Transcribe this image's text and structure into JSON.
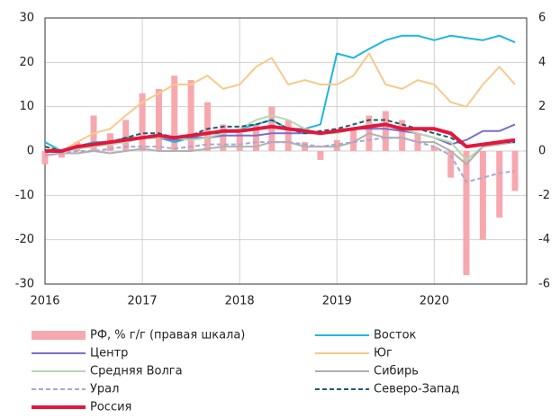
{
  "chart_data": {
    "type": "line",
    "x": [
      2016.0,
      2016.17,
      2016.33,
      2016.5,
      2016.67,
      2016.83,
      2017.0,
      2017.17,
      2017.33,
      2017.5,
      2017.67,
      2017.83,
      2018.0,
      2018.17,
      2018.33,
      2018.5,
      2018.67,
      2018.83,
      2019.0,
      2019.17,
      2019.33,
      2019.5,
      2019.67,
      2019.83,
      2020.0,
      2020.17,
      2020.33,
      2020.5,
      2020.67,
      2020.83
    ],
    "xlim": [
      2016,
      2020.95
    ],
    "xticks": [
      2016,
      2017,
      2018,
      2019,
      2020
    ],
    "ylim": [
      -30,
      30
    ],
    "yticks": [
      -30,
      -20,
      -10,
      0,
      10,
      20,
      30
    ],
    "y2lim": [
      -6,
      6
    ],
    "y2ticks": [
      -6,
      -4,
      -2,
      0,
      2,
      4,
      6
    ],
    "grid": true,
    "series": [
      {
        "name": "РФ, % г/г (правая шкала)",
        "type": "bar",
        "axis": "y2",
        "color": "#f7a8ae",
        "values": [
          -0.6,
          -0.3,
          0.4,
          1.6,
          0.8,
          1.4,
          2.6,
          2.8,
          3.4,
          3.2,
          2.2,
          1.2,
          0.8,
          1.2,
          2.0,
          1.4,
          0.4,
          -0.4,
          0.5,
          1.0,
          1.6,
          1.8,
          1.4,
          0.8,
          0.2,
          -1.2,
          -5.6,
          -4.0,
          -3.0,
          -1.8
        ]
      },
      {
        "name": "Восток",
        "color": "#1fb6e0",
        "style": "solid",
        "values": [
          2,
          0,
          1,
          2,
          2,
          3,
          3,
          3,
          2,
          3,
          4,
          4,
          5,
          6,
          7,
          5,
          5,
          6,
          22,
          21,
          23,
          25,
          26,
          26,
          25,
          26,
          25.5,
          25,
          26,
          24.5
        ]
      },
      {
        "name": "Центр",
        "color": "#7b6fc9",
        "style": "solid",
        "values": [
          0,
          0,
          1,
          1.5,
          2,
          2,
          3,
          3,
          2.5,
          3,
          3,
          3.5,
          3.5,
          3.5,
          4,
          4,
          4,
          4,
          4.5,
          5,
          5,
          5,
          4.5,
          4,
          3,
          1.5,
          2.5,
          4.5,
          4.5,
          6
        ]
      },
      {
        "name": "Юг",
        "color": "#f8c98a",
        "style": "solid",
        "values": [
          1,
          0,
          2,
          4,
          5,
          8,
          11,
          13,
          15,
          15,
          17,
          14,
          15,
          19,
          21,
          15,
          16,
          15,
          15,
          17,
          22,
          15,
          14,
          16,
          15,
          11,
          10,
          15,
          19,
          15
        ]
      },
      {
        "name": "Средняя Волга",
        "color": "#b5d9ae",
        "style": "solid",
        "values": [
          0,
          0,
          0.5,
          1,
          1.5,
          2,
          3,
          3,
          3,
          2.5,
          3,
          4,
          5,
          7,
          8,
          7,
          5,
          4,
          4,
          5,
          6,
          6,
          5,
          4,
          3,
          2,
          -2,
          1,
          2,
          2.5
        ]
      },
      {
        "name": "Сибирь",
        "color": "#b0b0b0",
        "style": "solid",
        "values": [
          -1,
          -0.5,
          -0.5,
          0,
          -0.5,
          0,
          0.5,
          0,
          0,
          0,
          0.5,
          1,
          1,
          1,
          2,
          2,
          1,
          1,
          1,
          2,
          4,
          3,
          3,
          2,
          2,
          0,
          -3,
          1,
          1.5,
          2
        ]
      },
      {
        "name": "Урал",
        "color": "#a9a6cf",
        "style": "dashed",
        "values": [
          -1,
          -0.5,
          0,
          0,
          0.5,
          1,
          1,
          1,
          0.5,
          1,
          1.5,
          1.5,
          1.5,
          2,
          2,
          2,
          1.5,
          1,
          1.5,
          2,
          2.5,
          3,
          3,
          2,
          1,
          -1,
          -7,
          -6,
          -5,
          -4.5
        ]
      },
      {
        "name": "Северо-Запад",
        "color": "#1d5d6b",
        "style": "dashed",
        "values": [
          1,
          0,
          1,
          1.5,
          2,
          3,
          4,
          4,
          3,
          3.5,
          5,
          5.5,
          5.5,
          6,
          7,
          5,
          4,
          4.5,
          5,
          6,
          7,
          7,
          6,
          5,
          4,
          3,
          1,
          1.5,
          2,
          2
        ]
      },
      {
        "name": "Россия",
        "color": "#e3173e",
        "style": "thick",
        "values": [
          0,
          0,
          1,
          1.5,
          2,
          2.5,
          3,
          3.5,
          3,
          3.5,
          4,
          4.5,
          4.5,
          5,
          5.5,
          5,
          4.5,
          4,
          4.5,
          5,
          5.5,
          6,
          5,
          5,
          5,
          4,
          1,
          1.5,
          2,
          2.5
        ]
      }
    ]
  }
}
